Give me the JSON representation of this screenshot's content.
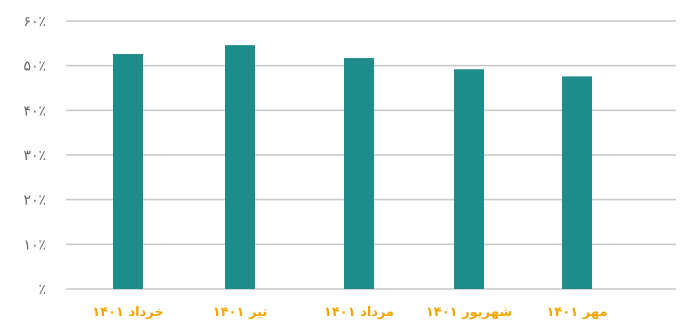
{
  "chart_data": {
    "type": "bar",
    "categories": [
      "خرداد ۱۴۰۱",
      "تیر ۱۴۰۱",
      "مرداد ۱۴۰۱",
      "شهریور ۱۴۰۱",
      "مهر ۱۴۰۱"
    ],
    "values": [
      52.6,
      54.6,
      51.7,
      49.2,
      47.6
    ],
    "ylim": [
      0,
      60
    ],
    "yticks": [
      0,
      10,
      20,
      30,
      40,
      50,
      60
    ],
    "ytick_labels": [
      "٪",
      "۱۰٪",
      "۲۰٪",
      "۳۰٪",
      "۴۰٪",
      "۵۰٪",
      "۶۰٪"
    ],
    "grid": true,
    "title": "",
    "xlabel": "",
    "ylabel": "",
    "colors": {
      "bar": "#1e8c8a",
      "xtick_label": "#f0a500",
      "grid": "#c8c8c8",
      "ytick_label": "#666666"
    }
  }
}
